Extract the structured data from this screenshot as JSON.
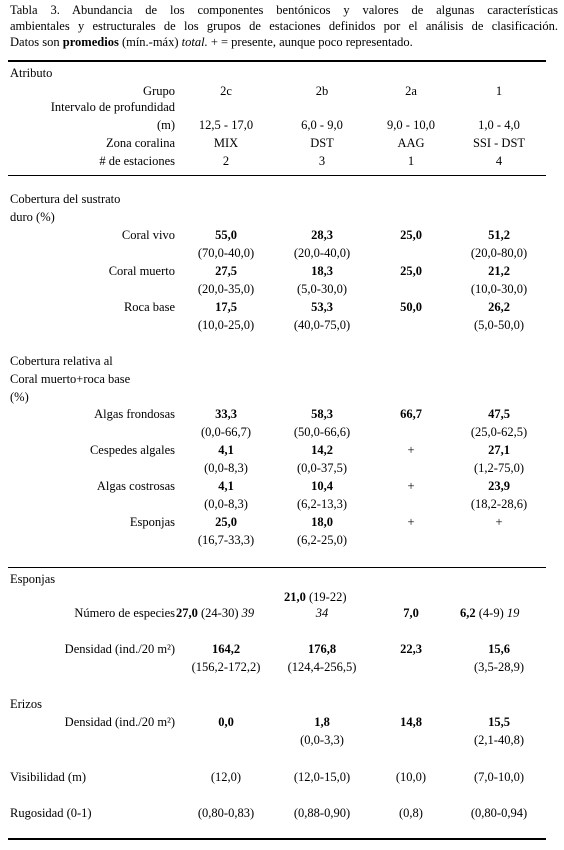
{
  "caption": {
    "line1": "Tabla 3.  Abundancia de los componentes bentónicos y valores de algunas características",
    "line2": "ambientales y estructurales de los grupos de estaciones definidos por el análisis de clasificación.",
    "line3_pre": "Datos son ",
    "line3_bold": "promedios",
    "line3_mid": " (mín.-máx) ",
    "line3_it": "total.",
    "line3_post": " + = presente, aunque poco representado."
  },
  "header": {
    "atributo": "Atributo",
    "grupo_label": "Grupo",
    "grupos": [
      "2c",
      "2b",
      "2a",
      "1"
    ],
    "intervalo_label1": "Intervalo de profundidad",
    "intervalo_label2": "(m)",
    "intervalos": [
      "12,5 - 17,0",
      "6,0 - 9,0",
      "9,0 - 10,0",
      "1,0 - 4,0"
    ],
    "zona_label": "Zona coralina",
    "zonas": [
      "MIX",
      "DST",
      "AAG",
      "SSI - DST"
    ],
    "est_label": "# de estaciones",
    "estaciones": [
      "2",
      "3",
      "1",
      "4"
    ]
  },
  "sustrato": {
    "title1": "Cobertura del sustrato",
    "title2": "duro (%)",
    "rows": [
      {
        "label": "Coral vivo",
        "mean": [
          "55,0",
          "28,3",
          "25,0",
          "51,2"
        ],
        "range": [
          "(70,0-40,0)",
          "(20,0-40,0)",
          "",
          "(20,0-80,0)"
        ]
      },
      {
        "label": "Coral muerto",
        "mean": [
          "27,5",
          "18,3",
          "25,0",
          "21,2"
        ],
        "range": [
          "(20,0-35,0)",
          "(5,0-30,0)",
          "",
          "(10,0-30,0)"
        ]
      },
      {
        "label": "Roca base",
        "mean": [
          "17,5",
          "53,3",
          "50,0",
          "26,2"
        ],
        "range": [
          "(10,0-25,0)",
          "(40,0-75,0)",
          "",
          "(5,0-50,0)"
        ]
      }
    ]
  },
  "relativa": {
    "title1": "Cobertura relativa al",
    "title2": "Coral muerto+roca base",
    "title3": "(%)",
    "rows": [
      {
        "label": "Algas frondosas",
        "mean": [
          "33,3",
          "58,3",
          "66,7",
          "47,5"
        ],
        "range": [
          "(0,0-66,7)",
          "(50,0-66,6)",
          "",
          "(25,0-62,5)"
        ]
      },
      {
        "label": "Cespedes algales",
        "mean": [
          "4,1",
          "14,2",
          "+",
          "27,1"
        ],
        "range": [
          "(0,0-8,3)",
          "(0,0-37,5)",
          "",
          "(1,2-75,0)"
        ]
      },
      {
        "label": "Algas costrosas",
        "mean": [
          "4,1",
          "10,4",
          "+",
          "23,9"
        ],
        "range": [
          "(0,0-8,3)",
          "(6,2-13,3)",
          "",
          "(18,2-28,6)"
        ]
      },
      {
        "label": "Esponjas",
        "mean": [
          "25,0",
          "18,0",
          "+",
          "+"
        ],
        "range": [
          "(16,7-33,3)",
          "(6,2-25,0)",
          "",
          ""
        ]
      }
    ]
  },
  "esponjas": {
    "title": "Esponjas",
    "especies_label": "Número de especies",
    "esp_2c_mean": "27,0",
    "esp_2c_range": " (24-30) ",
    "esp_2c_total": "39",
    "esp_2b_mean": "21,0",
    "esp_2b_range": " (19-22)",
    "esp_2b_total": "34",
    "esp_2a_mean": "7,0",
    "esp_1_mean": "6,2",
    "esp_1_range": " (4-9) ",
    "esp_1_total": "19",
    "densidad_label": "Densidad (ind./20 m²)",
    "dens_mean": [
      "164,2",
      "176,8",
      "22,3",
      "15,6"
    ],
    "dens_range": [
      "(156,2-172,2)",
      "(124,4-256,5)",
      "",
      "(3,5-28,9)"
    ]
  },
  "erizos": {
    "title": "Erizos",
    "densidad_label": "Densidad (ind./20 m²)",
    "mean": [
      "0,0",
      "1,8",
      "14,8",
      "15,5"
    ],
    "range": [
      "",
      "(0,0-3,3)",
      "",
      "(2,1-40,8)"
    ]
  },
  "visibilidad": {
    "label": "Visibilidad (m)",
    "values": [
      "(12,0)",
      "(12,0-15,0)",
      "(10,0)",
      "(7,0-10,0)"
    ]
  },
  "rugosidad": {
    "label": "Rugosidad (0-1)",
    "values": [
      "(0,80-0,83)",
      "(0,88-0,90)",
      "(0,8)",
      "(0,80-0,94)"
    ]
  }
}
